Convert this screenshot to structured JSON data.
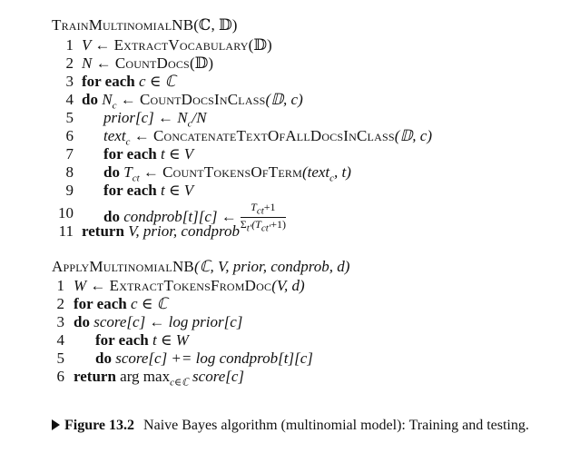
{
  "train": {
    "title_name": "TrainMultinomialNB",
    "title_args": "(ℂ, 𝔻)",
    "lines": [
      {
        "num": "1",
        "pre": "V ← ",
        "fn": "ExtractVocabulary",
        "post": "(𝔻)"
      },
      {
        "num": "2",
        "pre": "N ← ",
        "fn": "CountDocs",
        "post": "(𝔻)"
      },
      {
        "num": "3",
        "kw": "for each",
        "text": " c ∈ ℂ"
      },
      {
        "num": "4",
        "kw": "do",
        "pre": " N",
        "sub": "c",
        "pre2": " ← ",
        "fn": "CountDocsInClass",
        "post": "(𝔻, c)"
      },
      {
        "num": "5",
        "text": "prior[c] ← N",
        "sub": "c",
        "post": "/N"
      },
      {
        "num": "6",
        "text": "text",
        "sub": "c",
        "pre2": " ← ",
        "fn": "ConcatenateTextOfAllDocsInClass",
        "post": "(𝔻, c)"
      },
      {
        "num": "7",
        "kw": "for each",
        "text": " t ∈ V"
      },
      {
        "num": "8",
        "kw": "do",
        "pre": " T",
        "sub": "ct",
        "pre2": " ← ",
        "fn": "CountTokensOfTerm",
        "post": "(text",
        "sub2": "c",
        "post2": ", t)"
      },
      {
        "num": "9",
        "kw": "for each",
        "text": " t ∈ V"
      },
      {
        "num": "10",
        "kw": "do",
        "text": " condprob[t][c] ←",
        "frac_num": "T",
        "frac_num_sub": "ct",
        "frac_num_post": "+1",
        "frac_den": "Σ",
        "frac_den_sub": "t′",
        "frac_den_post": "(T",
        "frac_den_sub2": "ct′",
        "frac_den_post2": "+1)"
      },
      {
        "num": "11",
        "kw": "return",
        "text": " V, prior, condprob"
      }
    ]
  },
  "apply": {
    "title_name": "ApplyMultinomialNB",
    "title_args": "(ℂ, V, prior, condprob, d)",
    "lines": [
      {
        "num": "1",
        "pre": "W ← ",
        "fn": "ExtractTokensFromDoc",
        "post": "(V, d)"
      },
      {
        "num": "2",
        "kw": "for each",
        "text": " c ∈ ℂ"
      },
      {
        "num": "3",
        "kw": "do",
        "text": " score[c] ← log prior[c]"
      },
      {
        "num": "4",
        "kw": "for each",
        "text": " t ∈ W"
      },
      {
        "num": "5",
        "kw": "do",
        "text": " score[c] += log condprob[t][c]"
      },
      {
        "num": "6",
        "kw": "return",
        "text": " arg max",
        "sub": "c∈ℂ",
        "post": " score[c]"
      }
    ]
  },
  "caption": {
    "label": "Figure 13.2",
    "text": "Naive Bayes algorithm (multinomial model): Training and testing."
  }
}
